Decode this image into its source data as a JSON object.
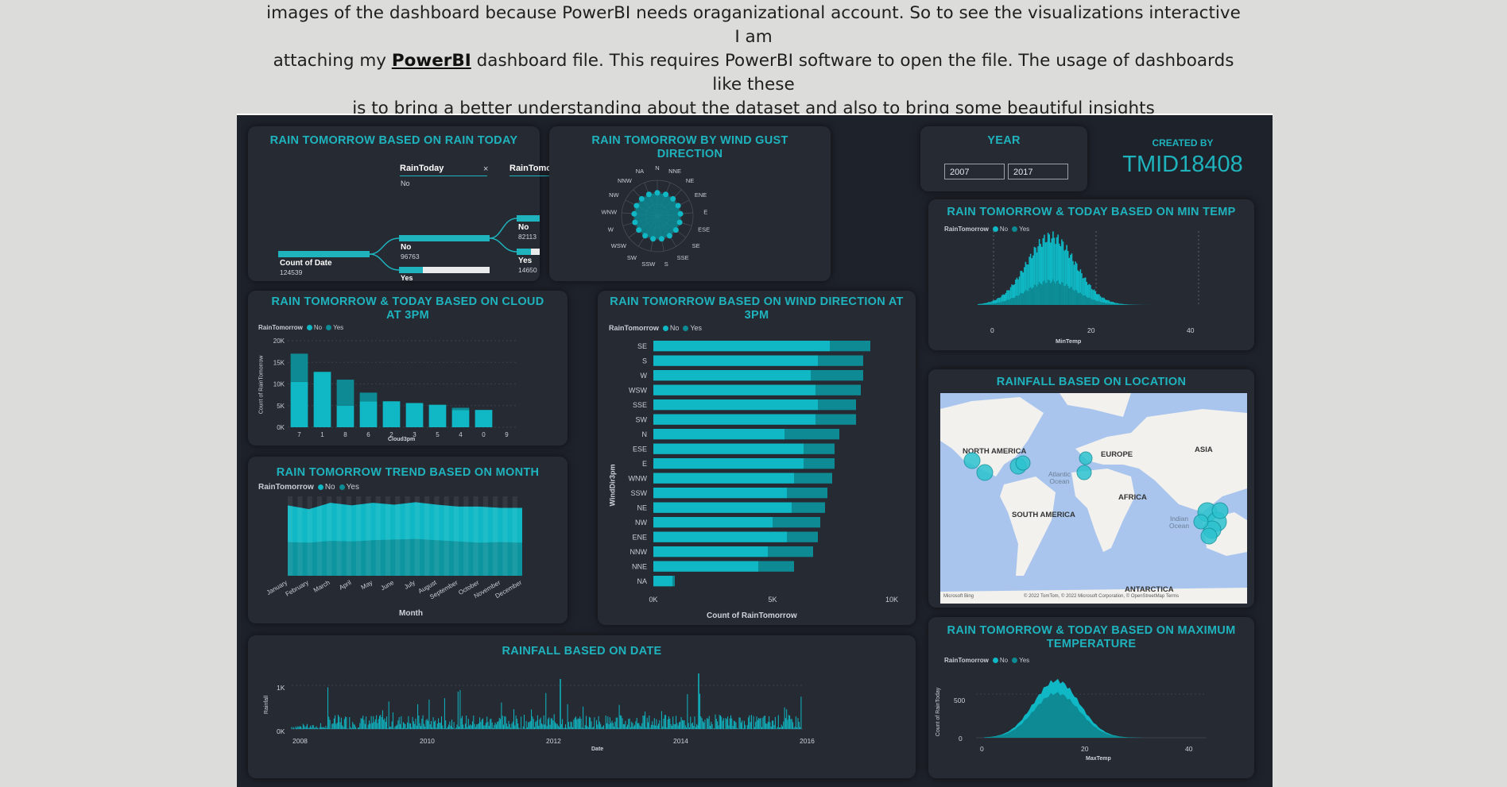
{
  "intro": {
    "line1": "images of the dashboard because PowerBI needs oraganizational account. So to see the visualizations interactive I am",
    "line2_pre": "attaching my ",
    "link": "PowerBI",
    "line2_post": " dashboard file. This requires PowerBI software to open the file. The usage of dashboards like these",
    "line3": "is to bring a better understanding about the dataset and also to bring some beautiful insights"
  },
  "colors": {
    "accent": "#1fb3bd",
    "no": "#0fb8c4",
    "yes": "#0d8a93",
    "bg": "#1e222a",
    "panel": "#252a33"
  },
  "panels": {
    "decomp": {
      "title": "RAIN TOMORROW BASED ON RAIN TODAY",
      "h1": "RainToday",
      "h1_sub": "No",
      "h2": "RainTomorrow",
      "root_label": "Count of Date",
      "root_value": "124539",
      "l1_no": "No",
      "l1_no_value": "96763",
      "l1_yes": "Yes",
      "l2_no": "No",
      "l2_no_value": "82113",
      "l2_yes": "Yes",
      "l2_yes_value": "14650"
    },
    "windgust": {
      "title": "RAIN TOMORROW BY WIND GUST DIRECTION",
      "directions": [
        "W",
        "SE",
        "N",
        "E",
        "S",
        "SSE",
        "WSW",
        "SW",
        "SSW",
        "WNW",
        "ENE",
        "NW",
        "ESE",
        "NE",
        "NNE",
        "NNW",
        "NA"
      ]
    },
    "year": {
      "title": "YEAR",
      "from": "2007",
      "to": "2017"
    },
    "created": {
      "label": "CREATED BY",
      "id": "TMID18408"
    },
    "mintemp": {
      "title": "RAIN TOMORROW & TODAY BASED ON MIN TEMP",
      "legend_title": "RainTomorrow",
      "no": "No",
      "yes": "Yes",
      "xlabel": "MinTemp",
      "ticks": [
        "0",
        "20",
        "40"
      ]
    },
    "cloud": {
      "title": "RAIN TOMORROW & TODAY BASED ON CLOUD AT 3PM",
      "legend_title": "RainTomorrow",
      "no": "No",
      "yes": "Yes",
      "xlabel": "Cloud3pm",
      "ylabel": "Count of RainTomorrow"
    },
    "winddir": {
      "title": "RAIN TOMORROW BASED ON WIND DIRECTION AT 3PM",
      "legend_title": "RainTomorrow",
      "no": "No",
      "yes": "Yes",
      "xlabel": "Count of RainTomorrow",
      "ylabel": "WindDir3pm"
    },
    "map": {
      "title": "RAINFALL BASED ON LOCATION",
      "labels": {
        "na": "NORTH AMERICA",
        "eu": "EUROPE",
        "asia": "ASIA",
        "af": "AFRICA",
        "sa": "SOUTH AMERICA",
        "ant": "ANTARCTICA",
        "atl": "Atlantic\nOcean",
        "ind": "Indian\nOcean"
      },
      "credit": "© 2022 TomTom, © 2022 Microsoft Corporation, © OpenStreetMap  Terms",
      "bing": "Microsoft Bing"
    },
    "month": {
      "title": "RAIN TOMORROW TREND BASED ON MONTH",
      "legend_title": "RainTomorrow",
      "no": "No",
      "yes": "Yes",
      "xlabel": "Month"
    },
    "date": {
      "title": "RAINFALL BASED ON DATE",
      "xlabel": "Date",
      "ylabel": "Rainfall",
      "yticks": [
        "0K",
        "1K"
      ],
      "xticks": [
        "2008",
        "2010",
        "2012",
        "2014",
        "2016"
      ]
    },
    "maxtemp": {
      "title": "RAIN TOMORROW & TODAY BASED ON MAXIMUM TEMPERATURE",
      "legend_title": "RainTomorrow",
      "no": "No",
      "yes": "Yes",
      "xlabel": "MaxTemp",
      "ylabel": "Count of RainToday",
      "yticks": [
        "0",
        "500"
      ],
      "xticks": [
        "0",
        "20",
        "40"
      ]
    }
  },
  "chart_data": [
    {
      "type": "bar",
      "title": "RAIN TOMORROW & TODAY BASED ON CLOUD AT 3PM",
      "xlabel": "Cloud3pm",
      "ylabel": "Count of RainTomorrow",
      "categories": [
        "7",
        "1",
        "8",
        "6",
        "2",
        "3",
        "5",
        "4",
        "0",
        "9"
      ],
      "series": [
        {
          "name": "No",
          "values": [
            10500,
            12800,
            5000,
            6000,
            6000,
            5600,
            5200,
            4000,
            4000,
            0
          ]
        },
        {
          "name": "Yes",
          "values": [
            6500,
            0,
            6000,
            2000,
            0,
            0,
            0,
            500,
            0,
            0
          ]
        }
      ],
      "yticks": [
        "0K",
        "5K",
        "10K",
        "15K",
        "20K"
      ],
      "ylim": [
        0,
        20000
      ]
    },
    {
      "type": "bar",
      "title": "RAIN TOMORROW BASED ON WIND DIRECTION AT 3PM",
      "orientation": "horizontal",
      "xlabel": "Count of RainTomorrow",
      "ylabel": "WindDir3pm",
      "categories": [
        "SE",
        "S",
        "W",
        "WSW",
        "SSE",
        "SW",
        "N",
        "ESE",
        "E",
        "WNW",
        "SSW",
        "NE",
        "NW",
        "ENE",
        "NNW",
        "NNE",
        "NA"
      ],
      "series": [
        {
          "name": "No",
          "values": [
            7400,
            6900,
            6600,
            6800,
            6900,
            6800,
            5500,
            6300,
            6300,
            5900,
            5600,
            5800,
            5000,
            5600,
            4800,
            4400,
            800
          ]
        },
        {
          "name": "Yes",
          "values": [
            1700,
            1900,
            2200,
            1900,
            1600,
            1700,
            2300,
            1300,
            1300,
            1600,
            1700,
            1400,
            2000,
            1300,
            1900,
            1500,
            100
          ]
        }
      ],
      "xticks": [
        "0K",
        "5K",
        "10K"
      ],
      "xlim": [
        0,
        10000
      ]
    },
    {
      "type": "area",
      "title": "RAIN TOMORROW TREND BASED ON MONTH",
      "xlabel": "Month",
      "categories": [
        "January",
        "February",
        "March",
        "April",
        "May",
        "June",
        "July",
        "August",
        "September",
        "October",
        "November",
        "December"
      ],
      "series": [
        {
          "name": "No",
          "values": [
            9000,
            8500,
            9200,
            8900,
            9100,
            8700,
            9000,
            8800,
            8700,
            8900,
            8600,
            8700
          ]
        },
        {
          "name": "Yes",
          "values": [
            2200,
            2100,
            2400,
            2300,
            2500,
            2600,
            2700,
            2500,
            2300,
            2100,
            2200,
            2100
          ]
        }
      ]
    }
  ]
}
